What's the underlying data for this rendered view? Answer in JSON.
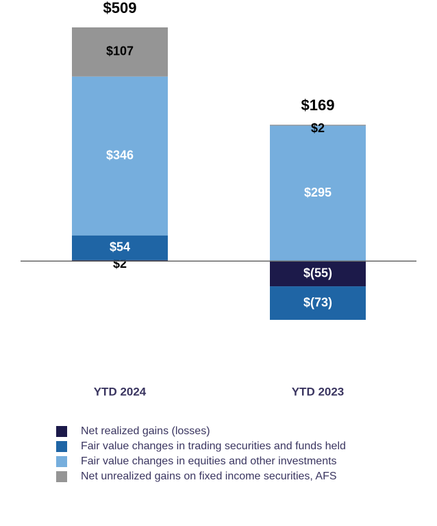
{
  "chart_data": {
    "type": "bar",
    "stacked": true,
    "categories": [
      "YTD 2024",
      "YTD 2023"
    ],
    "series": [
      {
        "name": "Net realized gains (losses)",
        "color": "#1c1a4a",
        "values": [
          2,
          -55
        ],
        "value_labels": [
          "$2",
          "$(55)"
        ]
      },
      {
        "name": "Fair value changes in trading securities and funds held",
        "color": "#1f65a5",
        "values": [
          54,
          -73
        ],
        "value_labels": [
          "$54",
          "$(73)"
        ]
      },
      {
        "name": "Fair value changes in equities and other investments",
        "color": "#76aedd",
        "values": [
          346,
          295
        ],
        "value_labels": [
          "$346",
          "$295"
        ]
      },
      {
        "name": "Net unrealized gains on fixed income securities, AFS",
        "color": "#959595",
        "values": [
          107,
          2
        ],
        "value_labels": [
          "$107",
          "$2"
        ]
      }
    ],
    "totals": [
      509,
      169
    ],
    "total_labels": [
      "$509",
      "$169"
    ]
  }
}
